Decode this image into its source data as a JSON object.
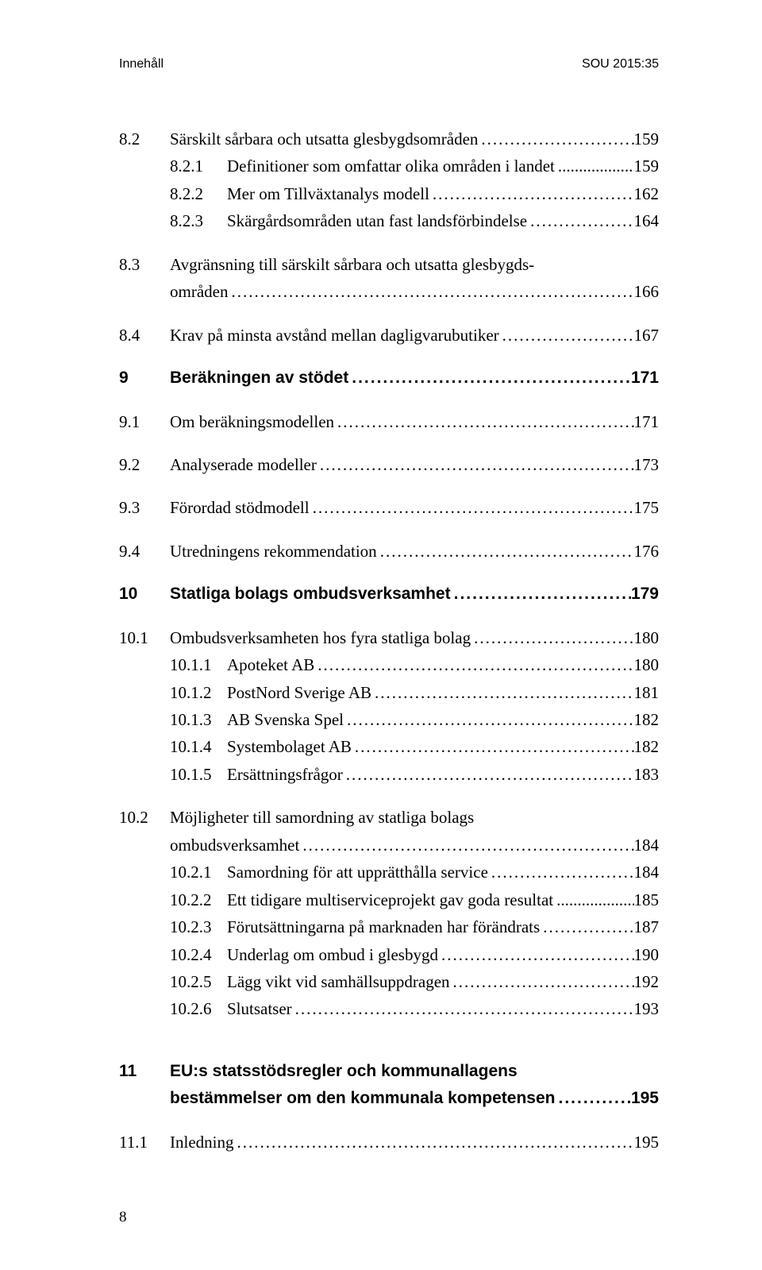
{
  "colors": {
    "background": "#ffffff",
    "text": "#000000"
  },
  "typography": {
    "body_family": "Georgia, 'Times New Roman', serif",
    "bold_family": "Arial, Helvetica, sans-serif",
    "body_size_pt": 16,
    "heading_size_pt": 16,
    "running_head_size_pt": 12
  },
  "running_head": {
    "left": "Innehåll",
    "right": "SOU 2015:35"
  },
  "page_number": "8",
  "toc": [
    {
      "type": "group",
      "items": [
        {
          "level": 2,
          "num": "8.2",
          "text": "Särskilt sårbara och utsatta glesbygdsområden",
          "page": "159"
        },
        {
          "level": 3,
          "num": "8.2.1",
          "text": "Definitioner som omfattar olika områden i landet",
          "page": "159",
          "tight_leader": true
        },
        {
          "level": 3,
          "num": "8.2.2",
          "text": "Mer om Tillväxtanalys modell",
          "page": "162"
        },
        {
          "level": 3,
          "num": "8.2.3",
          "text": "Skärgårdsområden utan fast landsförbindelse",
          "page": "164"
        }
      ]
    },
    {
      "type": "group",
      "items": [
        {
          "level": 2,
          "num": "8.3",
          "text_lines": [
            "Avgränsning till särskilt sårbara och utsatta glesbygds-",
            "områden"
          ],
          "page": "166"
        }
      ]
    },
    {
      "type": "group",
      "items": [
        {
          "level": 2,
          "num": "8.4",
          "text": "Krav på minsta avstånd mellan dagligvarubutiker",
          "page": "167"
        }
      ]
    },
    {
      "type": "group",
      "items": [
        {
          "level": 1,
          "chapter": true,
          "num": "9",
          "text": "Beräkningen av stödet",
          "page": "171"
        }
      ]
    },
    {
      "type": "group",
      "items": [
        {
          "level": 2,
          "num": "9.1",
          "text": "Om beräkningsmodellen",
          "page": "171"
        }
      ]
    },
    {
      "type": "group",
      "items": [
        {
          "level": 2,
          "num": "9.2",
          "text": "Analyserade modeller",
          "page": "173"
        }
      ]
    },
    {
      "type": "group",
      "items": [
        {
          "level": 2,
          "num": "9.3",
          "text": "Förordad stödmodell",
          "page": "175"
        }
      ]
    },
    {
      "type": "group",
      "items": [
        {
          "level": 2,
          "num": "9.4",
          "text": "Utredningens rekommendation",
          "page": "176"
        }
      ]
    },
    {
      "type": "group",
      "items": [
        {
          "level": 1,
          "chapter": true,
          "num": "10",
          "text": "Statliga bolags ombudsverksamhet",
          "page": "179"
        }
      ]
    },
    {
      "type": "group",
      "items": [
        {
          "level": 2,
          "num": "10.1",
          "text": "Ombudsverksamheten hos fyra statliga bolag",
          "page": "180"
        },
        {
          "level": 3,
          "num": "10.1.1",
          "text": "Apoteket AB",
          "page": "180"
        },
        {
          "level": 3,
          "num": "10.1.2",
          "text": "PostNord Sverige AB",
          "page": "181"
        },
        {
          "level": 3,
          "num": "10.1.3",
          "text": "AB Svenska Spel",
          "page": "182"
        },
        {
          "level": 3,
          "num": "10.1.4",
          "text": "Systembolaget AB",
          "page": "182"
        },
        {
          "level": 3,
          "num": "10.1.5",
          "text": "Ersättningsfrågor",
          "page": "183"
        }
      ]
    },
    {
      "type": "group",
      "items": [
        {
          "level": 2,
          "num": "10.2",
          "text_lines": [
            "Möjligheter till samordning av statliga bolags",
            "ombudsverksamhet"
          ],
          "page": "184"
        },
        {
          "level": 3,
          "num": "10.2.1",
          "text": "Samordning för att upprätthålla service",
          "page": "184"
        },
        {
          "level": 3,
          "num": "10.2.2",
          "text": "Ett tidigare multiserviceprojekt gav goda resultat",
          "page": "185",
          "tight_leader": true
        },
        {
          "level": 3,
          "num": "10.2.3",
          "text": "Förutsättningarna på marknaden har förändrats",
          "page": "187"
        },
        {
          "level": 3,
          "num": "10.2.4",
          "text": "Underlag om ombud i glesbygd",
          "page": "190"
        },
        {
          "level": 3,
          "num": "10.2.5",
          "text": "Lägg vikt vid samhällsuppdragen",
          "page": "192"
        },
        {
          "level": 3,
          "num": "10.2.6",
          "text": "Slutsatser",
          "page": "193"
        }
      ]
    },
    {
      "type": "group",
      "big_gap_before": true,
      "items": [
        {
          "level": 1,
          "chapter": true,
          "num": "11",
          "text_lines": [
            "EU:s statsstödsregler och kommunallagens",
            "bestämmelser om den kommunala kompetensen"
          ],
          "page": "195"
        }
      ]
    },
    {
      "type": "group",
      "items": [
        {
          "level": 2,
          "num": "11.1",
          "text": "Inledning",
          "page": "195"
        }
      ]
    }
  ]
}
